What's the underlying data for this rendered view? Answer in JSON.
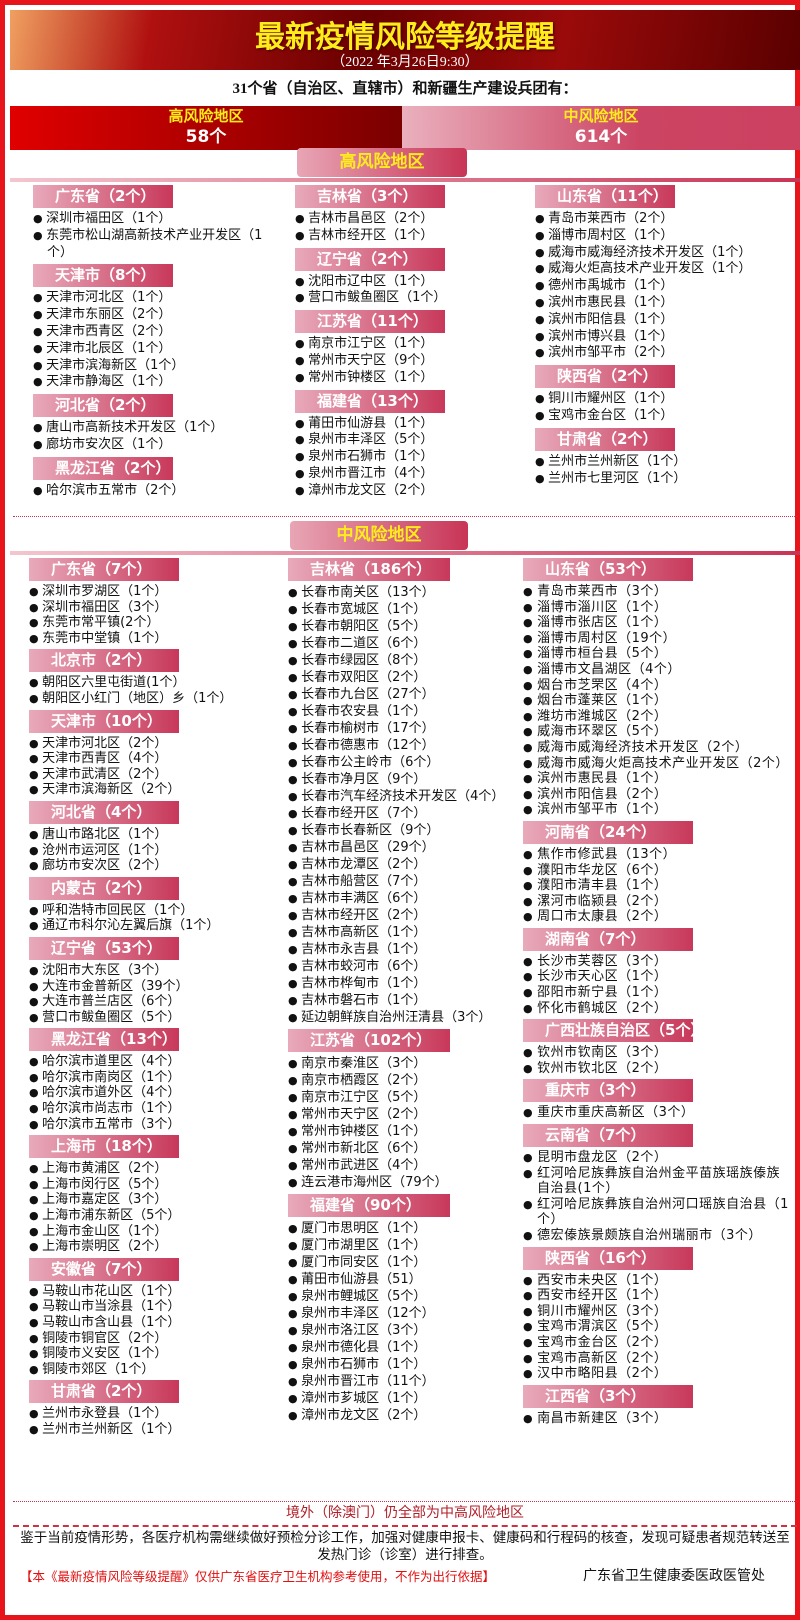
{
  "header": {
    "title": "最新疫情风险等级提醒",
    "date": "（2022 年3月26日9:30）",
    "intro": "31个省（自治区、直辖市）和新疆生产建设兵团有："
  },
  "summary": {
    "high_label": "高风险地区",
    "high_count": "58个",
    "mid_label": "中风险地区",
    "mid_count": "614个"
  },
  "high_risk": {
    "title": "高风险地区",
    "columns": [
      [
        {
          "province": "广东省（2个）",
          "items": [
            "深圳市福田区（1个）",
            "东莞市松山湖高新技术产业开发区（1个）"
          ]
        },
        {
          "province": "天津市（8个）",
          "items": [
            "天津市河北区（1个）",
            "天津市东丽区（2个）",
            "天津市西青区（2个）",
            "天津市北辰区（1个）",
            "天津市滨海新区（1个）",
            "天津市静海区（1个）"
          ]
        },
        {
          "province": "河北省（2个）",
          "items": [
            "唐山市高新技术开发区（1个）",
            "廊坊市安次区（1个）"
          ]
        },
        {
          "province": "黑龙江省（2个）",
          "items": [
            "哈尔滨市五常市（2个）"
          ]
        }
      ],
      [
        {
          "province": "吉林省（3个）",
          "items": [
            "吉林市昌邑区（2个）",
            "吉林市经开区（1个）"
          ]
        },
        {
          "province": "辽宁省（2个）",
          "items": [
            "沈阳市辽中区（1个）",
            "营口市鲅鱼圈区（1个）"
          ]
        },
        {
          "province": "江苏省（11个）",
          "items": [
            "南京市江宁区（1个）",
            "常州市天宁区（9个）",
            "常州市钟楼区（1个）"
          ]
        },
        {
          "province": "福建省（13个）",
          "items": [
            "莆田市仙游县（1个）",
            "泉州市丰泽区（5个）",
            "泉州市石狮市（1个）",
            "泉州市晋江市（4个）",
            "漳州市龙文区（2个）"
          ]
        }
      ],
      [
        {
          "province": "山东省（11个）",
          "items": [
            "青岛市莱西市（2个）",
            "淄博市周村区（1个）",
            "威海市威海经济技术开发区（1个）",
            "威海火炬高技术产业开发区（1个）",
            "德州市禹城市（1个）",
            "滨州市惠民县（1个）",
            "滨州市阳信县（1个）",
            "滨州市博兴县（1个）",
            "滨州市邹平市（2个）"
          ]
        },
        {
          "province": "陕西省（2个）",
          "items": [
            "铜川市耀州区（1个）",
            "宝鸡市金台区（1个）"
          ]
        },
        {
          "province": "甘肃省（2个）",
          "items": [
            "兰州市兰州新区（1个）",
            "兰州市七里河区（1个）"
          ]
        }
      ]
    ]
  },
  "mid_risk": {
    "title": "中风险地区",
    "columns": [
      [
        {
          "province": "广东省（7个）",
          "items": [
            "深圳市罗湖区（1个）",
            "深圳市福田区（3个）",
            "东莞市常平镇(2个）",
            "东莞市中堂镇（1个）"
          ]
        },
        {
          "province": "北京市（2个）",
          "items": [
            "朝阳区六里屯街道(1个）",
            "朝阳区小红门（地区）乡（1个）"
          ]
        },
        {
          "province": "天津市（10个）",
          "items": [
            "天津市河北区（2个）",
            "天津市西青区（4个）",
            "天津市武清区（2个）",
            "天津市滨海新区（2个）"
          ]
        },
        {
          "province": "河北省（4个）",
          "items": [
            "唐山市路北区（1个）",
            "沧州市运河区（1个）",
            "廊坊市安次区（2个）"
          ]
        },
        {
          "province": "内蒙古（2个）",
          "items": [
            "呼和浩特市回民区（1个）",
            "通辽市科尔沁左翼后旗（1个）"
          ]
        },
        {
          "province": "辽宁省（53个）",
          "items": [
            "沈阳市大东区（3个）",
            "大连市金普新区（39个）",
            "大连市普兰店区（6个）",
            "营口市鲅鱼圈区（5个）"
          ]
        },
        {
          "province": "黑龙江省（13个）",
          "items": [
            "哈尔滨市道里区（4个）",
            "哈尔滨市南岗区（1个）",
            "哈尔滨市道外区（4个）",
            "哈尔滨市尚志市（1个）",
            "哈尔滨市五常市（3个）"
          ]
        },
        {
          "province": "上海市（18个）",
          "items": [
            "上海市黄浦区（2个）",
            "上海市闵行区（5个）",
            "上海市嘉定区（3个）",
            "上海市浦东新区（5个）",
            "上海市金山区（1个）",
            "上海市崇明区（2个）"
          ]
        },
        {
          "province": "安徽省（7个）",
          "items": [
            "马鞍山市花山区（1个）",
            "马鞍山市当涂县（1个）",
            "马鞍山市含山县（1个）",
            "铜陵市铜官区（2个）",
            "铜陵市义安区（1个）",
            "铜陵市郊区（1个）"
          ]
        },
        {
          "province": "甘肃省（2个）",
          "items": [
            "兰州市永登县（1个）",
            "兰州市兰州新区（1个）"
          ]
        }
      ],
      [
        {
          "province": "吉林省（186个）",
          "items": [
            "长春市南关区（13个）",
            "长春市宽城区（1个）",
            "长春市朝阳区（5个）",
            "长春市二道区（6个）",
            "长春市绿园区（8个）",
            "长春市双阳区（2个）",
            "长春市九台区（27个）",
            "长春市农安县（1个）",
            "长春市榆树市（17个）",
            "长春市德惠市（12个）",
            "长春市公主岭市（6个）",
            "长春市净月区（9个）",
            "长春市汽车经济技术开发区（4个）",
            "长春市经开区（7个）",
            "长春市长春新区（9个）",
            "吉林市昌邑区（29个）",
            "吉林市龙潭区（2个）",
            "吉林市船营区（7个）",
            "吉林市丰满区（6个）",
            "吉林市经开区（2个）",
            "吉林市高新区（1个）",
            "吉林市永吉县（1个）",
            "吉林市蛟河市（6个）",
            "吉林市桦甸市（1个）",
            "吉林市磐石市（1个）",
            "延边朝鲜族自治州汪清县（3个）"
          ]
        },
        {
          "province": "江苏省（102个）",
          "items": [
            "南京市秦淮区（3个）",
            "南京市栖霞区（2个）",
            "南京市江宁区（5个）",
            "常州市天宁区（2个）",
            "常州市钟楼区（1个）",
            "常州市新北区（6个）",
            "常州市武进区（4个）",
            "连云港市海州区（79个）"
          ]
        },
        {
          "province": "福建省（90个）",
          "items": [
            "厦门市思明区（1个）",
            "厦门市湖里区（1个）",
            "厦门市同安区（1个）",
            "莆田市仙游县（51）",
            "泉州市鲤城区（5个）",
            "泉州市丰泽区（12个）",
            "泉州市洛江区（3个）",
            "泉州市德化县（1个）",
            "泉州市石狮市（1个）",
            "泉州市晋江市（11个）",
            "漳州市芗城区（1个）",
            "漳州市龙文区（2个）"
          ]
        }
      ],
      [
        {
          "province": "山东省（53个）",
          "items": [
            "青岛市莱西市（3个）",
            "淄博市淄川区（1个）",
            "淄博市张店区（1个）",
            "淄博市周村区（19个）",
            "淄博市桓台县（5个）",
            "淄博市文昌湖区（4个）",
            "烟台市芝罘区（4个）",
            "烟台市蓬莱区（1个）",
            "潍坊市潍城区（2个）",
            "威海市环翠区（5个）",
            "威海市威海经济技术开发区（2个）",
            "威海市威海火炬高技术产业开发区（2个）",
            "滨州市惠民县（1个）",
            "滨州市阳信县（2个）",
            "滨州市邹平市（1个）"
          ]
        },
        {
          "province": "河南省（24个）",
          "items": [
            "焦作市修武县（13个）",
            "濮阳市华龙区（6个）",
            "濮阳市清丰县（1个）",
            "漯河市临颍县（2个）",
            "周口市太康县（2个）"
          ]
        },
        {
          "province": "湖南省（7个）",
          "items": [
            "长沙市芙蓉区（3个）",
            "长沙市天心区（1个）",
            "邵阳市新宁县（1个）",
            "怀化市鹤城区（2个）"
          ]
        },
        {
          "province": "广西壮族自治区（5个）",
          "items": [
            "钦州市钦南区（3个）",
            "钦州市钦北区（2个）"
          ]
        },
        {
          "province": "重庆市（3个）",
          "items": [
            "重庆市重庆高新区（3个）"
          ]
        },
        {
          "province": "云南省（7个）",
          "items": [
            "昆明市盘龙区（2个）",
            "红河哈尼族彝族自治州金平苗族瑶族傣族自治县(1个）",
            "红河哈尼族彝族自治州河口瑶族自治县（1个）",
            "德宏傣族景颇族自治州瑞丽市（3个）"
          ]
        },
        {
          "province": "陕西省（16个）",
          "items": [
            "西安市未央区（1个）",
            "西安市经开区（1个）",
            "铜川市耀州区（3个）",
            "宝鸡市渭滨区（5个）",
            "宝鸡市金台区（2个）",
            "宝鸡市高新区（2个）",
            "汉中市略阳县（2个）"
          ]
        },
        {
          "province": "江西省（3个）",
          "items": [
            "南昌市新建区（3个）"
          ]
        }
      ]
    ]
  },
  "footer": {
    "overseas": "境外（除澳门）仍全部为中高风险地区",
    "advice": "鉴于当前疫情形势，各医疗机构需继续做好预检分诊工作，加强对健康申报卡、健康码和行程码的核查，发现可疑患者规范转送至发热门诊（诊室）进行排查。",
    "disclaimer": "【本《最新疫情风险等级提醒》仅供广东省医疗卫生机构参考使用，不作为出行依据】",
    "org": "广东省卫生健康委医政医管处"
  },
  "colors": {
    "border": "#e8141c",
    "title": "#ffec1a",
    "province_header": "#c8385a"
  }
}
